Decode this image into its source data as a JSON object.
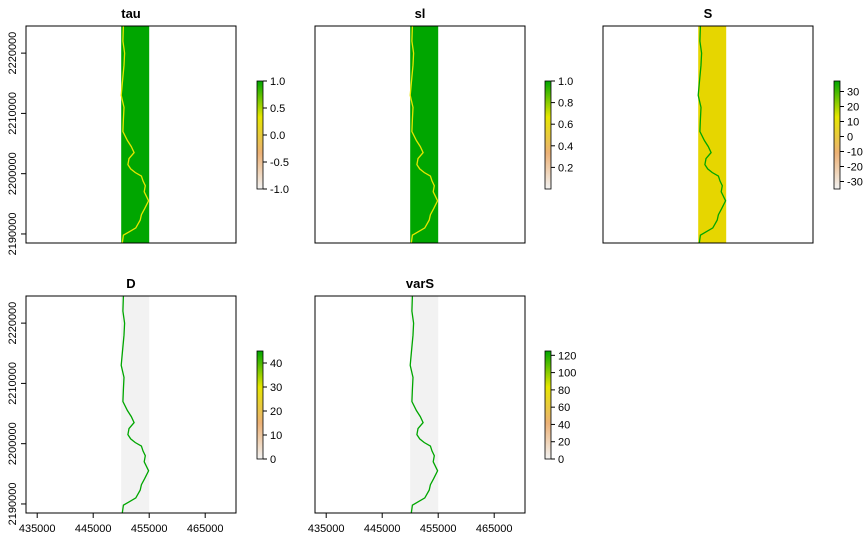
{
  "chart_data": [
    {
      "type": "heatmap",
      "title": "tau",
      "xlim": [
        433000,
        470500
      ],
      "ylim": [
        2188500,
        2224500
      ],
      "x_ticks": [],
      "y_ticks": [
        2190000,
        2200000,
        2210000,
        2220000
      ],
      "raster_extent": {
        "x": [
          450000,
          455000
        ],
        "y": [
          2188500,
          2224500
        ]
      },
      "fill_color": "#00a600",
      "line_color": "#e6e600",
      "legend": {
        "min": -1,
        "max": 1,
        "ticks": [
          -1.0,
          -0.5,
          0.0,
          0.5,
          1.0
        ],
        "tick_labels": [
          "-1.0",
          "-0.5",
          "0.0",
          "0.5",
          "1.0"
        ]
      }
    },
    {
      "type": "heatmap",
      "title": "sl",
      "xlim": [
        433000,
        470500
      ],
      "ylim": [
        2188500,
        2224500
      ],
      "x_ticks": [],
      "y_ticks": [],
      "raster_extent": {
        "x": [
          450000,
          455000
        ],
        "y": [
          2188500,
          2224500
        ]
      },
      "fill_color": "#00a600",
      "line_color": "#e6e600",
      "legend": {
        "min": 0,
        "max": 1,
        "ticks": [
          0.2,
          0.4,
          0.6,
          0.8,
          1.0
        ],
        "tick_labels": [
          "0.2",
          "0.4",
          "0.6",
          "0.8",
          "1.0"
        ]
      }
    },
    {
      "type": "heatmap",
      "title": "S",
      "xlim": [
        433000,
        470500
      ],
      "ylim": [
        2188500,
        2224500
      ],
      "x_ticks": [],
      "y_ticks": [],
      "raster_extent": {
        "x": [
          450000,
          455000
        ],
        "y": [
          2188500,
          2224500
        ]
      },
      "fill_color": "#e6d600",
      "line_color": "#00a600",
      "legend": {
        "min": -35,
        "max": 37,
        "ticks": [
          -30,
          -20,
          -10,
          0,
          10,
          20,
          30
        ],
        "tick_labels": [
          "-30",
          "-20",
          "-10",
          "0",
          "10",
          "20",
          "30"
        ]
      }
    },
    {
      "type": "heatmap",
      "title": "D",
      "xlim": [
        433000,
        470500
      ],
      "ylim": [
        2188500,
        2224500
      ],
      "x_ticks": [
        435000,
        445000,
        455000,
        465000
      ],
      "y_ticks": [
        2190000,
        2200000,
        2210000,
        2220000
      ],
      "raster_extent": {
        "x": [
          450000,
          455000
        ],
        "y": [
          2188500,
          2224500
        ]
      },
      "fill_color": "#f2f2f2",
      "line_color": "#00a600",
      "legend": {
        "min": 0,
        "max": 45,
        "ticks": [
          0,
          10,
          20,
          30,
          40
        ],
        "tick_labels": [
          "0",
          "10",
          "20",
          "30",
          "40"
        ]
      }
    },
    {
      "type": "heatmap",
      "title": "varS",
      "xlim": [
        433000,
        470500
      ],
      "ylim": [
        2188500,
        2224500
      ],
      "x_ticks": [
        435000,
        445000,
        455000,
        465000
      ],
      "y_ticks": [],
      "raster_extent": {
        "x": [
          450000,
          455000
        ],
        "y": [
          2188500,
          2224500
        ]
      },
      "fill_color": "#f2f2f2",
      "line_color": "#00a600",
      "legend": {
        "min": 0,
        "max": 125,
        "ticks": [
          0,
          20,
          40,
          60,
          80,
          100,
          120
        ],
        "tick_labels": [
          "0",
          "20",
          "40",
          "60",
          "80",
          "100",
          "120"
        ]
      }
    }
  ],
  "coastline": {
    "x": [
      450400,
      450300,
      450600,
      450500,
      450200,
      450000,
      450500,
      450400,
      450300,
      451100,
      451800,
      452300,
      451400,
      451200,
      451700,
      452500,
      453600,
      453900,
      454300,
      454100,
      454900,
      454200,
      453600,
      453400,
      452600,
      450400,
      450200
    ],
    "y": [
      2224500,
      2222000,
      2220000,
      2218000,
      2215000,
      2213000,
      2211000,
      2209000,
      2207000,
      2205500,
      2204500,
      2203500,
      2202500,
      2201500,
      2200800,
      2200200,
      2199600,
      2198800,
      2198000,
      2197000,
      2195500,
      2194200,
      2193200,
      2192300,
      2191000,
      2189800,
      2188500
    ]
  },
  "legend_gradient": [
    "#f2f2f2",
    "#ecb176",
    "#e6e600",
    "#00a600"
  ]
}
